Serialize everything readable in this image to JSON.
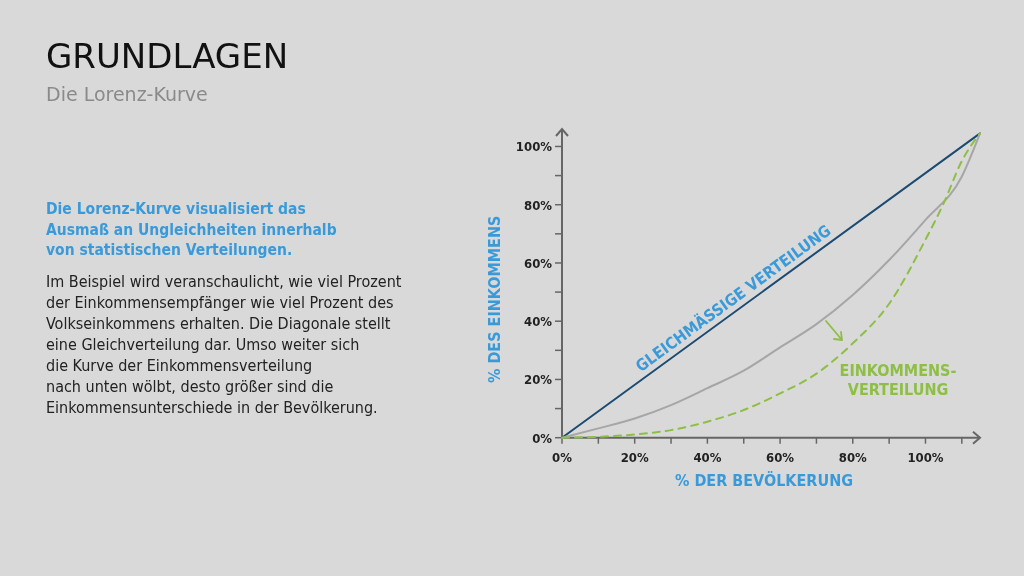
{
  "chart_data": {
    "type": "line",
    "title": "GRUNDLAGEN",
    "subtitle": "Die Lorenz-Kurve",
    "xlabel": "% DER BEVÖLKERUNG",
    "ylabel": "% DES EINKOMMENS",
    "annotations": [
      "Die Lorenz-Kurve visualisiert das\nAusmaß an Ungleichheiten innerhalb\nvon statistischen Verteilungen.",
      "Im Beispiel wird veranschaulicht, wie viel Prozent\nder Einkommensempfänger wie viel Prozent des\nVolkseinkommens erhalten. Die Diagonale stellt\neine Gleichverteilung dar. Umso weiter sich\ndie Kurve der Einkommensverteilung\nnach unten wölbt, desto größer sind die\nEinkommensunterschiede in der Bevölkerung."
    ],
    "xlim": [
      0,
      115
    ],
    "ylim": [
      0,
      106
    ],
    "xticks": [
      {
        "value": 0,
        "label": "0%"
      },
      {
        "value": 10,
        "label": null
      },
      {
        "value": 20,
        "label": "20%"
      },
      {
        "value": 30,
        "label": null
      },
      {
        "value": 40,
        "label": "40%"
      },
      {
        "value": 50,
        "label": null
      },
      {
        "value": 60,
        "label": "60%"
      },
      {
        "value": 70,
        "label": null
      },
      {
        "value": 80,
        "label": "80%"
      },
      {
        "value": 90,
        "label": null
      },
      {
        "value": 100,
        "label": "100%"
      },
      {
        "value": 110,
        "label": null
      }
    ],
    "yticks": [
      {
        "value": 0,
        "label": "0%"
      },
      {
        "value": 10,
        "label": null
      },
      {
        "value": 20,
        "label": "20%"
      },
      {
        "value": 30,
        "label": null
      },
      {
        "value": 40,
        "label": "40%"
      },
      {
        "value": 50,
        "label": null
      },
      {
        "value": 60,
        "label": "60%"
      },
      {
        "value": 70,
        "label": null
      },
      {
        "value": 80,
        "label": "80%"
      },
      {
        "value": 90,
        "label": null
      },
      {
        "value": 100,
        "label": "100%"
      }
    ],
    "grid": false,
    "marker": "none",
    "series": [
      {
        "name": "GLEICHMÄSSIGE VERTEILUNG",
        "color": "#1b4a72",
        "line_style": "solid",
        "x": [
          0,
          115
        ],
        "values": [
          0,
          104.5
        ]
      },
      {
        "color": "#a6a6a6",
        "line_style": "solid",
        "x": [
          0,
          10,
          20,
          30,
          40,
          50,
          60,
          70,
          80,
          90,
          100,
          110,
          115
        ],
        "values": [
          0,
          3.2,
          6.6,
          11.2,
          17,
          23,
          31,
          39,
          49,
          61,
          74.8,
          89.7,
          104.5
        ]
      },
      {
        "name": "EINKOMMENS-\nVERTEILUNG",
        "color": "#8dbf44",
        "line_style": "dashed",
        "x": [
          0,
          10,
          20,
          30,
          40,
          50,
          60,
          70,
          80,
          90,
          100,
          105,
          110,
          115
        ],
        "values": [
          0,
          0.3,
          1.1,
          2.6,
          5.5,
          9.5,
          15.2,
          22,
          32.4,
          46,
          68,
          80.5,
          95,
          104.5
        ]
      }
    ]
  }
}
